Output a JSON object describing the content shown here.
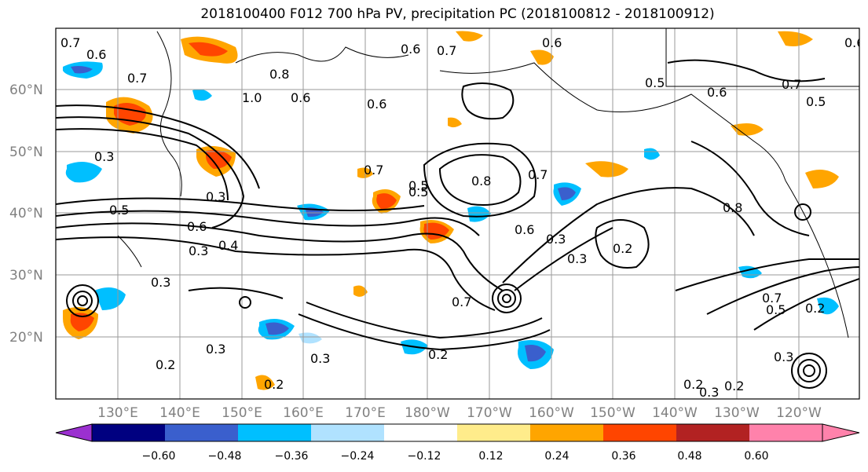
{
  "title": "2018100400 F012 700 hPa PV, precipitation PC (2018100812 - 2018100912)",
  "lat_labels": [
    "60°N",
    "50°N",
    "40°N",
    "30°N",
    "20°N"
  ],
  "lon_labels": [
    "130°E",
    "140°E",
    "150°E",
    "160°E",
    "170°E",
    "180°W",
    "170°W",
    "160°W",
    "150°W",
    "140°W",
    "130°W",
    "120°W"
  ],
  "contour_labels": [
    "0.7",
    "0.6",
    "0.8",
    "1.0",
    "0.6",
    "0.6",
    "0.7",
    "0.5",
    "0.6",
    "0.5",
    "0.6",
    "0.7",
    "0.5",
    "0.3",
    "0.5",
    "0.3",
    "0.4",
    "0.6",
    "0.3",
    "0.3",
    "0.7",
    "0.5",
    "0.8",
    "0.7",
    "0.6",
    "0.3",
    "0.3",
    "0.2",
    "0.8",
    "0.7",
    "0.5",
    "0.2",
    "0.3",
    "0.2",
    "0.2",
    "0.3",
    "0.2",
    "0.7",
    "0.2",
    "0.3",
    "0.2",
    "0.3",
    "0.6",
    "0.6",
    "0.7"
  ],
  "colorbar": {
    "ticks": [
      "−0.60",
      "−0.48",
      "−0.36",
      "−0.24",
      "−0.12",
      "0.12",
      "0.24",
      "0.36",
      "0.48",
      "0.60"
    ],
    "colors": [
      "#9b30d0",
      "#000080",
      "#3a5fcd",
      "#00bfff",
      "#b0e2ff",
      "#ffffff",
      "#ffec8b",
      "#ffa500",
      "#ff4500",
      "#b22222",
      "#ff82ab",
      "#ff82ab"
    ]
  },
  "shading_colors": {
    "strong_pos": "#ff4500",
    "mid_pos": "#ffa500",
    "weak_pos": "#ffec8b",
    "strong_neg": "#3a5fcd",
    "mid_neg": "#00bfff",
    "weak_neg": "#b0e2ff"
  }
}
